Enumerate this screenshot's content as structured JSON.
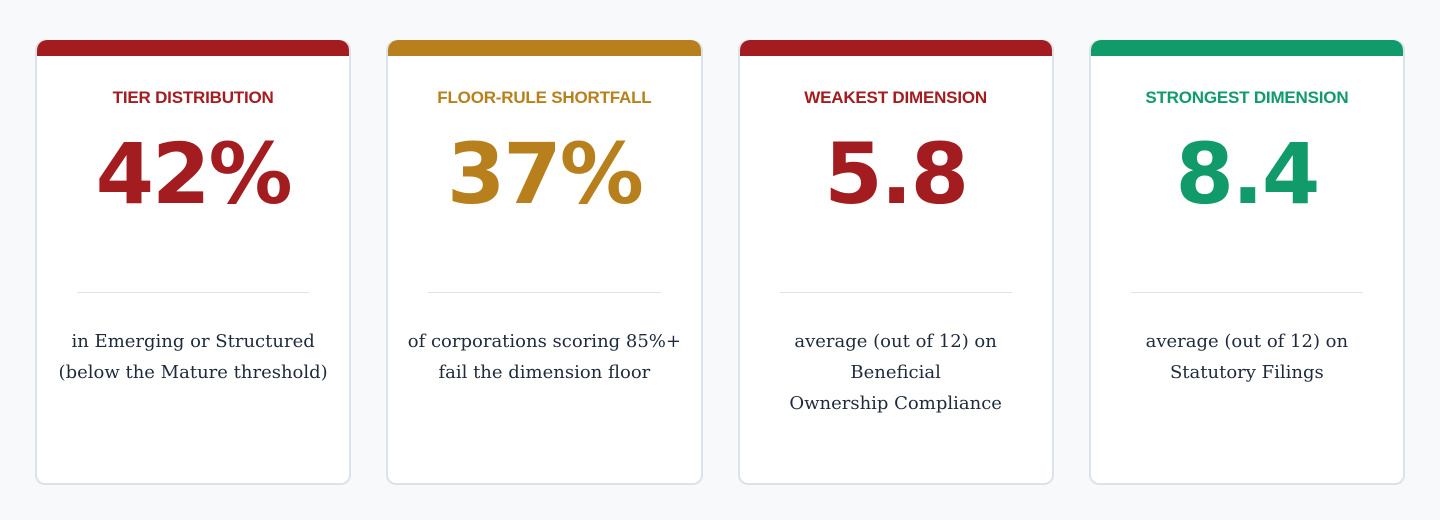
{
  "cards": [
    {
      "label": "TIER DISTRIBUTION",
      "value": "42%",
      "desc_line1": "in Emerging or Structured",
      "desc_line2": "(below the Mature threshold)",
      "color": "#a31c20"
    },
    {
      "label": "FLOOR-RULE SHORTFALL",
      "value": "37%",
      "desc_line1": "of corporations scoring 85%+",
      "desc_line2": "fail the dimension floor",
      "color": "#b8801c"
    },
    {
      "label": "WEAKEST DIMENSION",
      "value": "5.8",
      "desc_line1": "average (out of 12) on Beneficial",
      "desc_line2": "Ownership Compliance",
      "color": "#a31c20"
    },
    {
      "label": "STRONGEST DIMENSION",
      "value": "8.4",
      "desc_line1": "average (out of 12) on",
      "desc_line2": "Statutory Filings",
      "color": "#119a6a"
    }
  ]
}
